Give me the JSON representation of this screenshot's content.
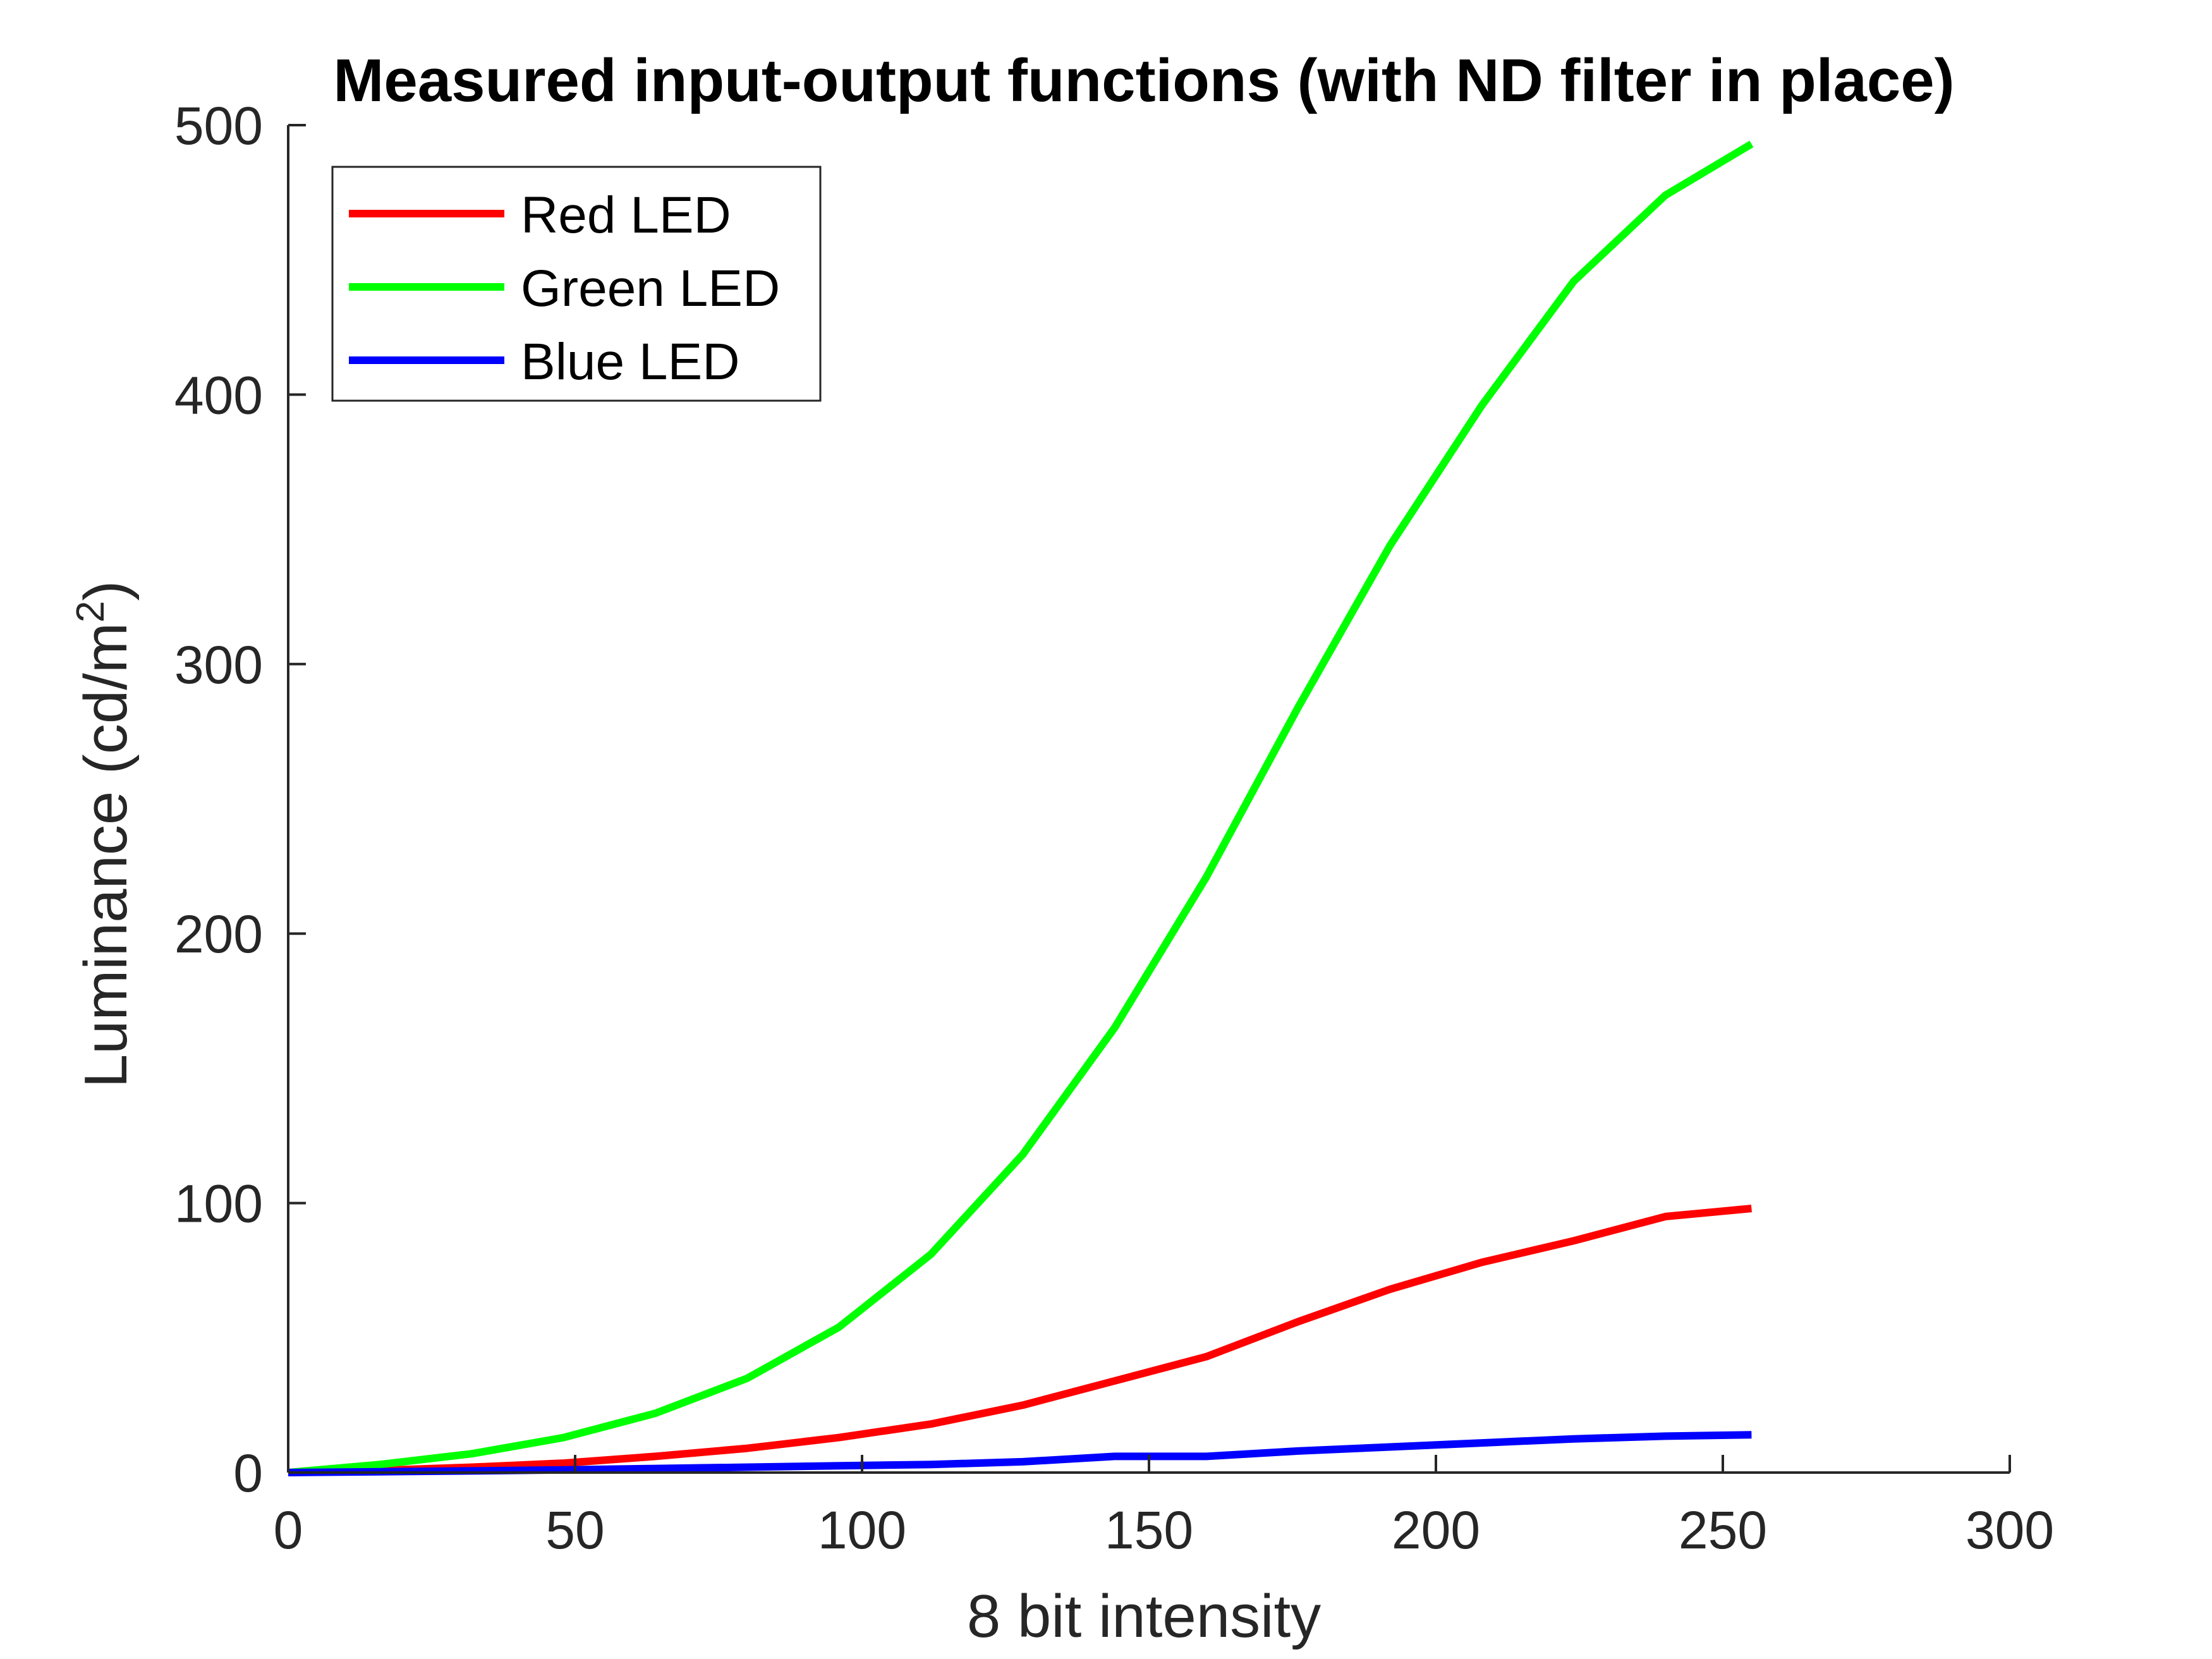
{
  "chart_data": {
    "type": "line",
    "title": "Measured input-output functions (with ND filter in place)",
    "xlabel": "8 bit intensity",
    "ylabel": "Luminance (cd/m",
    "ylabel_superscript": "2",
    "ylabel_suffix": ")",
    "xlim": [
      0,
      300
    ],
    "ylim": [
      0,
      500
    ],
    "xticks": [
      0,
      50,
      100,
      150,
      200,
      250,
      300
    ],
    "yticks": [
      0,
      100,
      200,
      300,
      400,
      500
    ],
    "grid": false,
    "legend_position": "top-left",
    "series": [
      {
        "name": "Red LED",
        "color": "#ff0000",
        "x": [
          0,
          16,
          32,
          48,
          64,
          80,
          96,
          112,
          128,
          144,
          160,
          176,
          192,
          208,
          224,
          240,
          255
        ],
        "y": [
          0,
          0.8,
          2,
          3.5,
          6,
          9,
          13,
          18,
          25,
          34,
          43,
          56,
          68,
          78,
          86,
          95,
          98
        ]
      },
      {
        "name": "Green LED",
        "color": "#00ff00",
        "x": [
          0,
          16,
          32,
          48,
          64,
          80,
          96,
          112,
          128,
          144,
          160,
          176,
          192,
          208,
          224,
          240,
          255
        ],
        "y": [
          0,
          3,
          7,
          13,
          22,
          35,
          54,
          81,
          118,
          165,
          221,
          284,
          344,
          396,
          442,
          474,
          493
        ]
      },
      {
        "name": "Blue LED",
        "color": "#0000ff",
        "x": [
          0,
          16,
          32,
          48,
          64,
          80,
          96,
          112,
          128,
          144,
          160,
          176,
          192,
          208,
          224,
          240,
          255
        ],
        "y": [
          0,
          0.3,
          0.6,
          1,
          1.5,
          2,
          2.5,
          3,
          4,
          6,
          6,
          8,
          9.5,
          11,
          12.5,
          13.5,
          14
        ]
      }
    ]
  }
}
